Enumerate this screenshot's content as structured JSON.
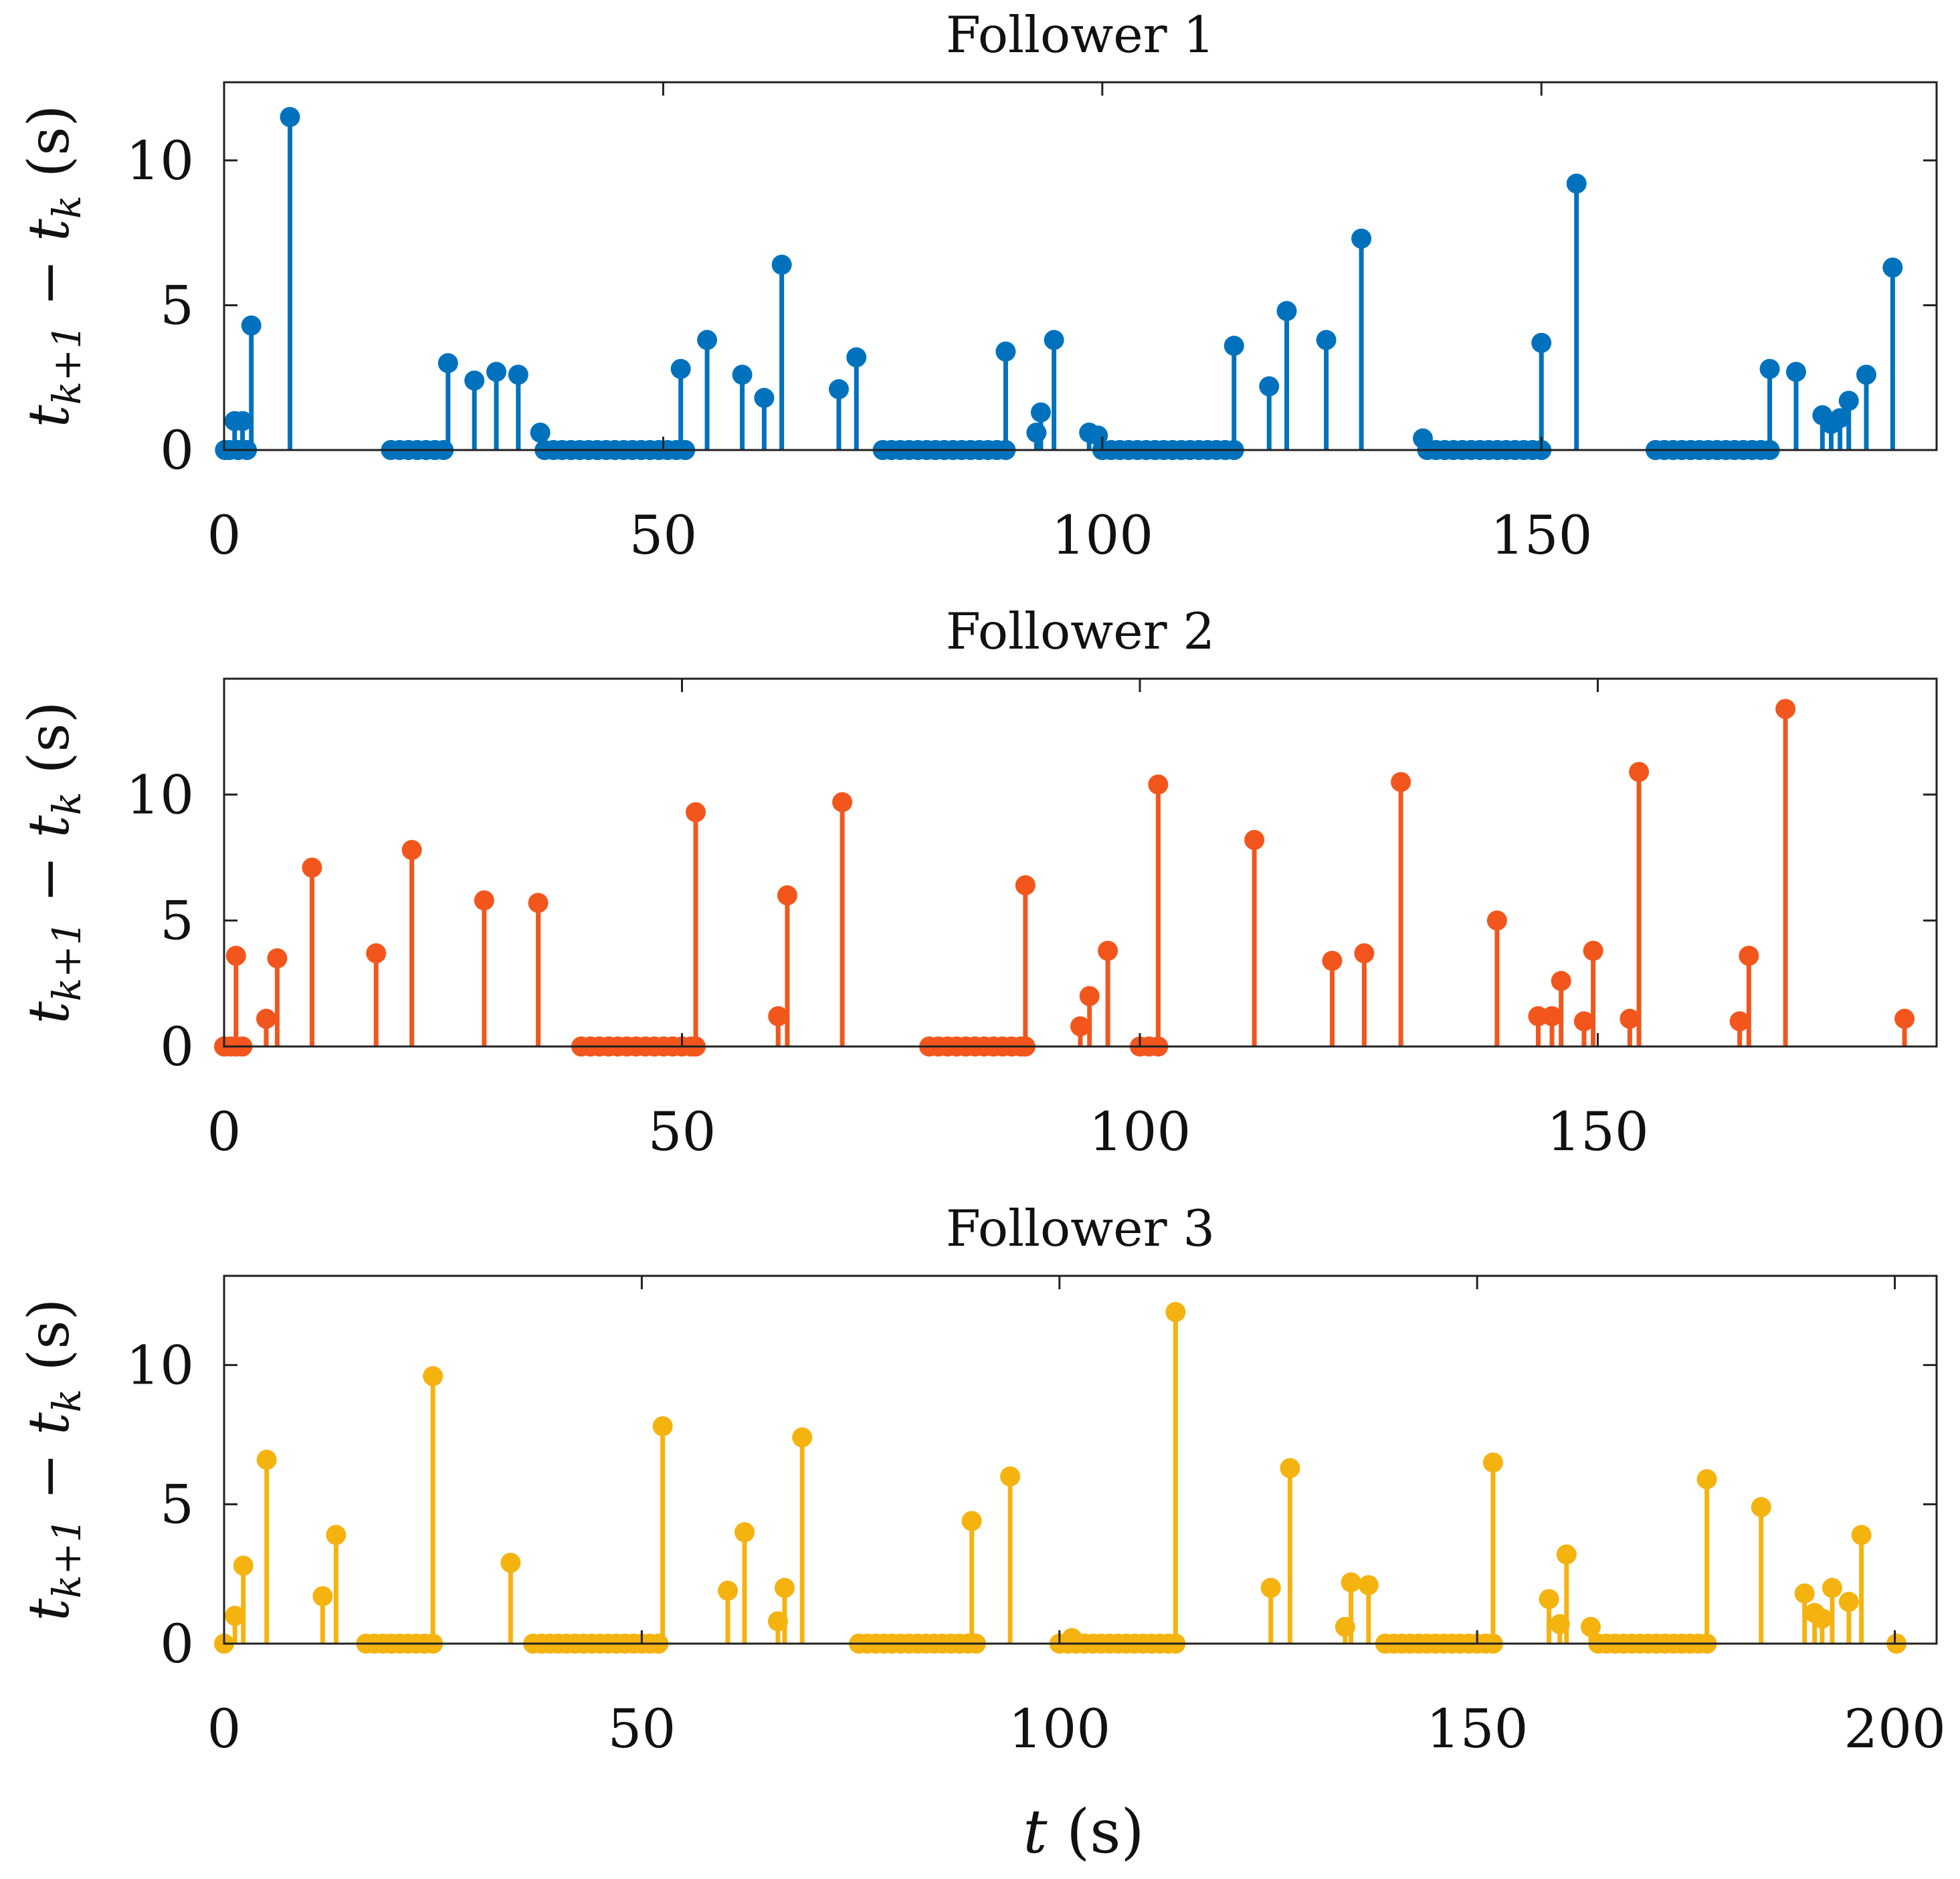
{
  "figure": {
    "ylabel": {
      "t": "t",
      "k1": "k+1",
      "minus": " − ",
      "k": "k",
      "unit": " (s)"
    },
    "xlabel": {
      "t": "t",
      "unit": " (s)"
    }
  },
  "chart_data": [
    {
      "type": "stem",
      "title": "Follower 1",
      "color": "#0072BD",
      "xlim": [
        0,
        195
      ],
      "ylim": [
        0,
        12.7
      ],
      "xticks": [
        0,
        50,
        100,
        150
      ],
      "xtick_labels": [
        "0",
        "50",
        "100",
        "150"
      ],
      "yticks": [
        0,
        5,
        10
      ],
      "ytick_labels": [
        "0",
        "5",
        "10"
      ],
      "points": [
        [
          0.1,
          0
        ],
        [
          0.6,
          0
        ],
        [
          1.2,
          1.0
        ],
        [
          1.6,
          0
        ],
        [
          2.1,
          1.0
        ],
        [
          2.6,
          0
        ],
        [
          3.1,
          4.3
        ],
        [
          7.5,
          11.5
        ],
        [
          19,
          0
        ],
        [
          20,
          0
        ],
        [
          21,
          0
        ],
        [
          22,
          0
        ],
        [
          23,
          0
        ],
        [
          24,
          0
        ],
        [
          25,
          0
        ],
        [
          25.5,
          3.0
        ],
        [
          28.5,
          2.4
        ],
        [
          31,
          2.7
        ],
        [
          33.5,
          2.6
        ],
        [
          36,
          0.6
        ],
        [
          36.5,
          0
        ],
        [
          37.5,
          0
        ],
        [
          38.5,
          0
        ],
        [
          39.5,
          0
        ],
        [
          40.5,
          0
        ],
        [
          41.5,
          0
        ],
        [
          42.5,
          0
        ],
        [
          43.5,
          0
        ],
        [
          44.5,
          0
        ],
        [
          45.5,
          0
        ],
        [
          46.5,
          0
        ],
        [
          47.5,
          0
        ],
        [
          48.5,
          0
        ],
        [
          49.5,
          0
        ],
        [
          50.5,
          0
        ],
        [
          51.5,
          0
        ],
        [
          52.5,
          0
        ],
        [
          52,
          2.8
        ],
        [
          55,
          3.8
        ],
        [
          59,
          2.6
        ],
        [
          61.5,
          1.8
        ],
        [
          63.5,
          6.4
        ],
        [
          70,
          2.1
        ],
        [
          72,
          3.2
        ],
        [
          75,
          0
        ],
        [
          76,
          0
        ],
        [
          77,
          0
        ],
        [
          78,
          0
        ],
        [
          79,
          0
        ],
        [
          80,
          0
        ],
        [
          81,
          0
        ],
        [
          82,
          0
        ],
        [
          83,
          0
        ],
        [
          84,
          0
        ],
        [
          85,
          0
        ],
        [
          86,
          0
        ],
        [
          87,
          0
        ],
        [
          88,
          0
        ],
        [
          89,
          0
        ],
        [
          89,
          3.4
        ],
        [
          92.5,
          0.6
        ],
        [
          93,
          1.3
        ],
        [
          94.5,
          3.8
        ],
        [
          98.5,
          0.6
        ],
        [
          99.5,
          0.5
        ],
        [
          100,
          0
        ],
        [
          101,
          0
        ],
        [
          102,
          0
        ],
        [
          103,
          0
        ],
        [
          104,
          0
        ],
        [
          105,
          0
        ],
        [
          106,
          0
        ],
        [
          107,
          0
        ],
        [
          108,
          0
        ],
        [
          109,
          0
        ],
        [
          110,
          0
        ],
        [
          111,
          0
        ],
        [
          112,
          0
        ],
        [
          113,
          0
        ],
        [
          114,
          0
        ],
        [
          115,
          0
        ],
        [
          115,
          3.6
        ],
        [
          119,
          2.2
        ],
        [
          121,
          4.8
        ],
        [
          125.5,
          3.8
        ],
        [
          129.5,
          7.3
        ],
        [
          136.5,
          0.4
        ],
        [
          137,
          0
        ],
        [
          138,
          0
        ],
        [
          139,
          0
        ],
        [
          140,
          0
        ],
        [
          141,
          0
        ],
        [
          142,
          0
        ],
        [
          143,
          0
        ],
        [
          144,
          0
        ],
        [
          145,
          0
        ],
        [
          146,
          0
        ],
        [
          147,
          0
        ],
        [
          148,
          0
        ],
        [
          149,
          0
        ],
        [
          150,
          0
        ],
        [
          150,
          3.7
        ],
        [
          154,
          9.2
        ],
        [
          163,
          0
        ],
        [
          164,
          0
        ],
        [
          165,
          0
        ],
        [
          166,
          0
        ],
        [
          167,
          0
        ],
        [
          168,
          0
        ],
        [
          169,
          0
        ],
        [
          170,
          0
        ],
        [
          171,
          0
        ],
        [
          172,
          0
        ],
        [
          173,
          0
        ],
        [
          174,
          0
        ],
        [
          175,
          0
        ],
        [
          176,
          0
        ],
        [
          176,
          2.8
        ],
        [
          179,
          2.7
        ],
        [
          182,
          1.2
        ],
        [
          183,
          0.9
        ],
        [
          184,
          1.1
        ],
        [
          185,
          1.7
        ],
        [
          187,
          2.6
        ],
        [
          190,
          6.3
        ]
      ]
    },
    {
      "type": "stem",
      "title": "Follower 2",
      "color": "#F2561D",
      "xlim": [
        0,
        187
      ],
      "ylim": [
        0,
        14.6
      ],
      "xticks": [
        0,
        50,
        100,
        150
      ],
      "xtick_labels": [
        "0",
        "50",
        "100",
        "150"
      ],
      "yticks": [
        0,
        5,
        10
      ],
      "ytick_labels": [
        "0",
        "5",
        "10"
      ],
      "points": [
        [
          0,
          0
        ],
        [
          0.7,
          0
        ],
        [
          1.3,
          0
        ],
        [
          1.3,
          3.6
        ],
        [
          2,
          0
        ],
        [
          4.6,
          1.1
        ],
        [
          5.8,
          3.5
        ],
        [
          9.6,
          7.1
        ],
        [
          16.6,
          3.7
        ],
        [
          20.5,
          7.8
        ],
        [
          28.4,
          5.8
        ],
        [
          34.3,
          5.7
        ],
        [
          39,
          0
        ],
        [
          40,
          0
        ],
        [
          41,
          0
        ],
        [
          42,
          0
        ],
        [
          43,
          0
        ],
        [
          44,
          0
        ],
        [
          45,
          0
        ],
        [
          46,
          0
        ],
        [
          47,
          0
        ],
        [
          48,
          0
        ],
        [
          49,
          0
        ],
        [
          50,
          0
        ],
        [
          51,
          0
        ],
        [
          51.5,
          0
        ],
        [
          51.5,
          9.3
        ],
        [
          60.5,
          1.2
        ],
        [
          61.5,
          6.0
        ],
        [
          67.5,
          9.7
        ],
        [
          77,
          0
        ],
        [
          78,
          0
        ],
        [
          79,
          0
        ],
        [
          80,
          0
        ],
        [
          81,
          0
        ],
        [
          82,
          0
        ],
        [
          83,
          0
        ],
        [
          84,
          0
        ],
        [
          85,
          0
        ],
        [
          86,
          0
        ],
        [
          87,
          0
        ],
        [
          87.5,
          0
        ],
        [
          87.5,
          6.4
        ],
        [
          93.5,
          0.8
        ],
        [
          94.5,
          2.0
        ],
        [
          96.5,
          3.8
        ],
        [
          100,
          0
        ],
        [
          101,
          0
        ],
        [
          102,
          0
        ],
        [
          102,
          10.4
        ],
        [
          112.5,
          8.2
        ],
        [
          121,
          3.4
        ],
        [
          124.5,
          3.7
        ],
        [
          128.5,
          10.5
        ],
        [
          139,
          5.0
        ],
        [
          143.5,
          1.2
        ],
        [
          145,
          1.2
        ],
        [
          146,
          2.6
        ],
        [
          148.5,
          1.0
        ],
        [
          149.5,
          3.8
        ],
        [
          153.5,
          1.1
        ],
        [
          154.5,
          10.9
        ],
        [
          165.5,
          1.0
        ],
        [
          166.5,
          3.6
        ],
        [
          170.5,
          13.4
        ],
        [
          183.5,
          1.1
        ]
      ]
    },
    {
      "type": "stem",
      "title": "Follower 3",
      "color": "#F5B310",
      "xlim": [
        0,
        205
      ],
      "ylim": [
        0,
        13.2
      ],
      "xticks": [
        0,
        50,
        100,
        150,
        200
      ],
      "xtick_labels": [
        "0",
        "50",
        "100",
        "150",
        "200"
      ],
      "yticks": [
        0,
        5,
        10
      ],
      "ytick_labels": [
        "0",
        "5",
        "10"
      ],
      "points": [
        [
          0,
          0
        ],
        [
          1.3,
          1.0
        ],
        [
          2.3,
          2.8
        ],
        [
          5.1,
          6.6
        ],
        [
          11.8,
          1.7
        ],
        [
          13.4,
          3.9
        ],
        [
          17,
          0
        ],
        [
          18,
          0
        ],
        [
          19,
          0
        ],
        [
          20,
          0
        ],
        [
          21,
          0
        ],
        [
          22,
          0
        ],
        [
          23,
          0
        ],
        [
          24,
          0
        ],
        [
          25,
          0
        ],
        [
          25,
          9.6
        ],
        [
          34.3,
          2.9
        ],
        [
          37,
          0
        ],
        [
          38,
          0
        ],
        [
          39,
          0
        ],
        [
          40,
          0
        ],
        [
          41,
          0
        ],
        [
          42,
          0
        ],
        [
          43,
          0
        ],
        [
          44,
          0
        ],
        [
          45,
          0
        ],
        [
          46,
          0
        ],
        [
          47,
          0
        ],
        [
          48,
          0
        ],
        [
          49,
          0
        ],
        [
          50,
          0
        ],
        [
          51,
          0
        ],
        [
          52,
          0
        ],
        [
          52.5,
          7.8
        ],
        [
          60.3,
          1.9
        ],
        [
          62.3,
          4.0
        ],
        [
          66.3,
          0.8
        ],
        [
          67.1,
          2.0
        ],
        [
          69.2,
          7.4
        ],
        [
          76,
          0
        ],
        [
          77,
          0
        ],
        [
          78,
          0
        ],
        [
          79,
          0
        ],
        [
          80,
          0
        ],
        [
          81,
          0
        ],
        [
          82,
          0
        ],
        [
          83,
          0
        ],
        [
          84,
          0
        ],
        [
          85,
          0
        ],
        [
          86,
          0
        ],
        [
          87,
          0
        ],
        [
          88,
          0
        ],
        [
          89,
          0
        ],
        [
          90,
          0
        ],
        [
          89.5,
          4.4
        ],
        [
          94.1,
          6.0
        ],
        [
          100,
          0
        ],
        [
          101,
          0
        ],
        [
          101.5,
          0.2
        ],
        [
          102,
          0
        ],
        [
          103,
          0
        ],
        [
          104,
          0
        ],
        [
          105,
          0
        ],
        [
          106,
          0
        ],
        [
          107,
          0
        ],
        [
          108,
          0
        ],
        [
          109,
          0
        ],
        [
          110,
          0
        ],
        [
          111,
          0
        ],
        [
          112,
          0
        ],
        [
          113,
          0
        ],
        [
          113.9,
          0
        ],
        [
          113.9,
          11.9
        ],
        [
          125.3,
          2.0
        ],
        [
          127.6,
          6.3
        ],
        [
          134.2,
          0.6
        ],
        [
          134.9,
          2.2
        ],
        [
          137,
          2.1
        ],
        [
          139,
          0
        ],
        [
          140,
          0
        ],
        [
          141,
          0
        ],
        [
          142,
          0
        ],
        [
          143,
          0
        ],
        [
          144,
          0
        ],
        [
          145,
          0
        ],
        [
          146,
          0
        ],
        [
          147,
          0
        ],
        [
          148,
          0
        ],
        [
          149,
          0
        ],
        [
          150,
          0
        ],
        [
          151,
          0
        ],
        [
          151.9,
          0
        ],
        [
          151.9,
          6.5
        ],
        [
          158.6,
          1.6
        ],
        [
          159.9,
          0.7
        ],
        [
          160.7,
          3.2
        ],
        [
          163.6,
          0.6
        ],
        [
          164.5,
          0
        ],
        [
          165.5,
          0
        ],
        [
          166.5,
          0
        ],
        [
          167.5,
          0
        ],
        [
          168.5,
          0
        ],
        [
          169.5,
          0
        ],
        [
          170.5,
          0
        ],
        [
          171.5,
          0
        ],
        [
          172.5,
          0
        ],
        [
          173.5,
          0
        ],
        [
          174.5,
          0
        ],
        [
          175.5,
          0
        ],
        [
          176.5,
          0
        ],
        [
          177.5,
          0
        ],
        [
          177.5,
          5.9
        ],
        [
          184,
          4.9
        ],
        [
          189.2,
          1.8
        ],
        [
          190.4,
          1.1
        ],
        [
          191.3,
          0.9
        ],
        [
          192.5,
          2.0
        ],
        [
          194.5,
          1.5
        ],
        [
          196,
          3.9
        ],
        [
          200.2,
          0
        ]
      ]
    }
  ]
}
